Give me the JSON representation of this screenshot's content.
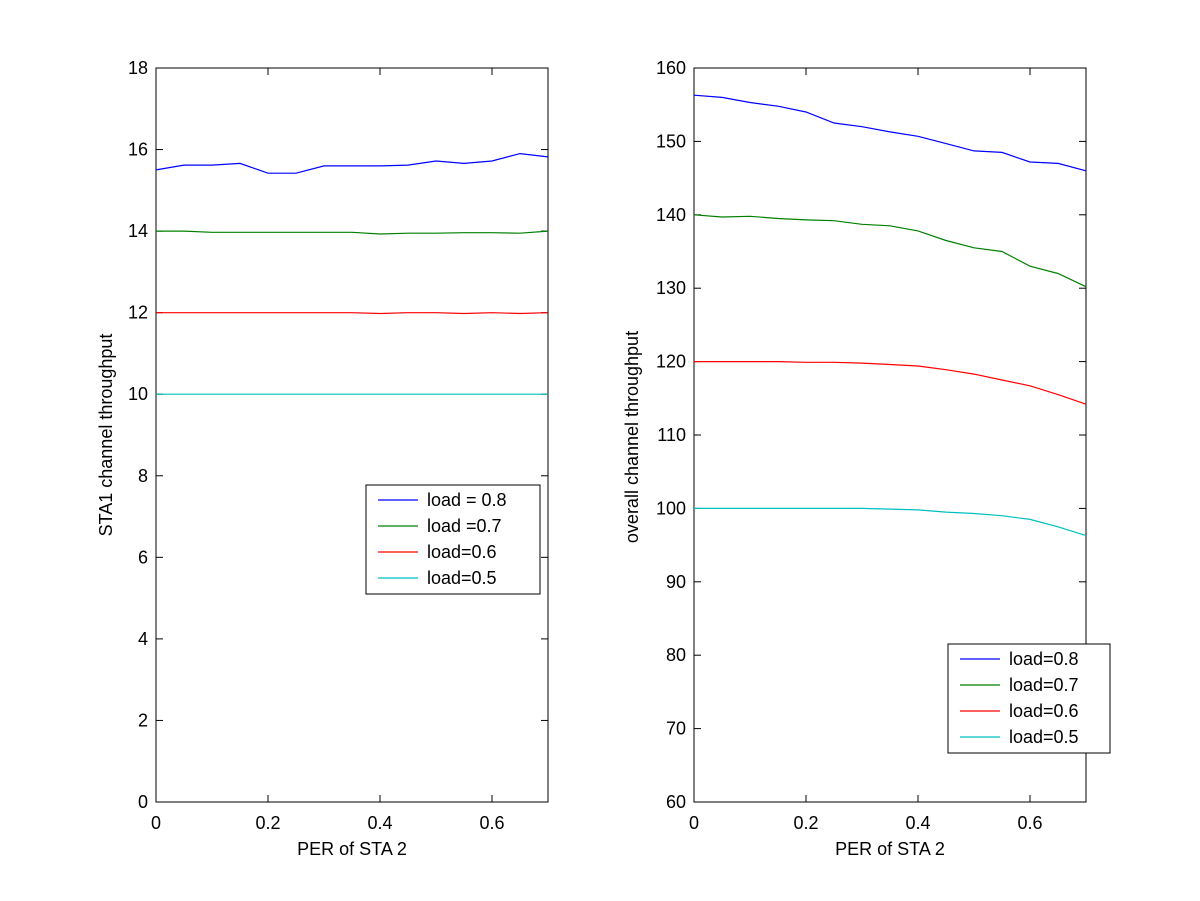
{
  "chart_data": [
    {
      "type": "line",
      "title": "",
      "xlabel": "PER of STA 2",
      "ylabel": "STA1  channel throughput",
      "xlim": [
        0,
        0.7
      ],
      "ylim": [
        0,
        18
      ],
      "xticks": [
        0,
        0.2,
        0.4,
        0.6
      ],
      "xtick_labels": [
        "0",
        "0.2",
        "0.4",
        "0.6"
      ],
      "yticks": [
        0,
        2,
        4,
        6,
        8,
        10,
        12,
        14,
        16,
        18
      ],
      "ytick_labels": [
        "0",
        "2",
        "4",
        "6",
        "8",
        "10",
        "12",
        "14",
        "16",
        "18"
      ],
      "grid": false,
      "legend_position": "center-right",
      "x": [
        0,
        0.05,
        0.1,
        0.15,
        0.2,
        0.25,
        0.3,
        0.35,
        0.4,
        0.45,
        0.5,
        0.55,
        0.6,
        0.65,
        0.7
      ],
      "series": [
        {
          "name": "load = 0.8",
          "color": "#0000ff",
          "values": [
            15.5,
            15.62,
            15.62,
            15.66,
            15.42,
            15.42,
            15.6,
            15.6,
            15.6,
            15.62,
            15.72,
            15.66,
            15.72,
            15.9,
            15.82
          ]
        },
        {
          "name": "load =0.7",
          "color": "#008000",
          "values": [
            14.0,
            14.0,
            13.97,
            13.97,
            13.97,
            13.97,
            13.97,
            13.97,
            13.93,
            13.95,
            13.95,
            13.96,
            13.96,
            13.95,
            14.0
          ]
        },
        {
          "name": "load=0.6",
          "color": "#ff0000",
          "values": [
            12.0,
            12.0,
            12.0,
            12.0,
            12.0,
            12.0,
            12.0,
            12.0,
            11.98,
            12.0,
            12.0,
            11.98,
            12.0,
            11.98,
            12.0
          ]
        },
        {
          "name": "load=0.5",
          "color": "#00bfbf",
          "values": [
            10.0,
            10.0,
            10.0,
            10.0,
            10.0,
            10.0,
            10.0,
            10.0,
            10.0,
            10.0,
            10.0,
            10.0,
            10.0,
            10.0,
            10.0
          ]
        }
      ]
    },
    {
      "type": "line",
      "title": "",
      "xlabel": "PER of STA 2",
      "ylabel": "overall channel throughput",
      "xlim": [
        0,
        0.7
      ],
      "ylim": [
        60,
        160
      ],
      "xticks": [
        0,
        0.2,
        0.4,
        0.6
      ],
      "xtick_labels": [
        "0",
        "0.2",
        "0.4",
        "0.6"
      ],
      "yticks": [
        60,
        70,
        80,
        90,
        100,
        110,
        120,
        130,
        140,
        150,
        160
      ],
      "ytick_labels": [
        "60",
        "70",
        "80",
        "90",
        "100",
        "110",
        "120",
        "130",
        "140",
        "150",
        "160"
      ],
      "grid": false,
      "legend_position": "bottom-right",
      "x": [
        0,
        0.05,
        0.1,
        0.15,
        0.2,
        0.25,
        0.3,
        0.35,
        0.4,
        0.45,
        0.5,
        0.55,
        0.6,
        0.65,
        0.7
      ],
      "series": [
        {
          "name": "load=0.8",
          "color": "#0000ff",
          "values": [
            156.3,
            156.0,
            155.3,
            154.8,
            154.0,
            152.5,
            152.0,
            151.3,
            150.7,
            149.7,
            148.7,
            148.5,
            147.2,
            147.0,
            146.0
          ]
        },
        {
          "name": "load=0.7",
          "color": "#008000",
          "values": [
            140.0,
            139.7,
            139.8,
            139.5,
            139.3,
            139.2,
            138.7,
            138.5,
            137.8,
            136.5,
            135.5,
            135.0,
            133.0,
            132.0,
            130.2
          ]
        },
        {
          "name": "load=0.6",
          "color": "#ff0000",
          "values": [
            120.0,
            120.0,
            120.0,
            120.0,
            119.9,
            119.9,
            119.8,
            119.6,
            119.4,
            118.9,
            118.3,
            117.5,
            116.7,
            115.5,
            114.2
          ]
        },
        {
          "name": "load=0.5",
          "color": "#00bfbf",
          "values": [
            100.0,
            100.0,
            100.0,
            100.0,
            100.0,
            100.0,
            100.0,
            99.9,
            99.8,
            99.5,
            99.3,
            99.0,
            98.5,
            97.5,
            96.3
          ]
        }
      ]
    }
  ]
}
